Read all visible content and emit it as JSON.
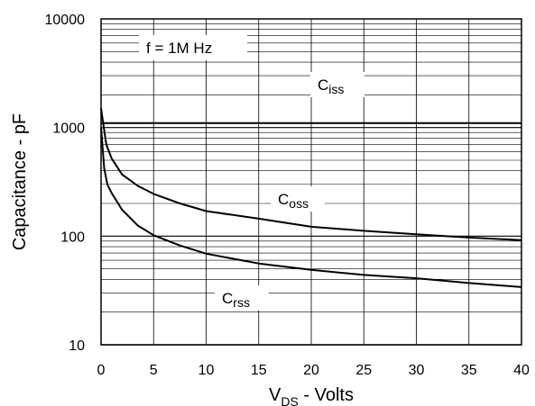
{
  "chart_data": {
    "type": "line",
    "xlabel_main": "V",
    "xlabel_sub": "DS",
    "xlabel_rest": " - Volts",
    "ylabel": "Capacitance - pF",
    "x_scale": "linear",
    "y_scale": "log",
    "xlim": [
      0,
      40
    ],
    "ylim": [
      10,
      10000
    ],
    "x_ticks": [
      "0",
      "5",
      "10",
      "15",
      "20",
      "25",
      "30",
      "35",
      "40"
    ],
    "y_ticks": [
      "10",
      "100",
      "1000",
      "10000"
    ],
    "grid": true,
    "annotation": "f = 1M Hz",
    "series": [
      {
        "name": "C",
        "name_sub": "iss",
        "x": [
          0,
          40
        ],
        "y": [
          1100,
          1100
        ]
      },
      {
        "name": "C",
        "name_sub": "oss",
        "x": [
          0,
          0.5,
          1,
          2,
          3.5,
          5,
          7.5,
          10,
          15,
          20,
          25,
          30,
          35,
          40
        ],
        "y": [
          1500,
          700,
          520,
          370,
          290,
          245,
          200,
          170,
          145,
          122,
          112,
          104,
          97,
          92
        ]
      },
      {
        "name": "C",
        "name_sub": "rss",
        "x": [
          0,
          0.3,
          0.6,
          1,
          2,
          3.5,
          5,
          7.5,
          10,
          15,
          20,
          25,
          30,
          35,
          40
        ],
        "y": [
          1000,
          420,
          300,
          250,
          175,
          125,
          102,
          82,
          69,
          56,
          49,
          44,
          41,
          37,
          34
        ]
      }
    ]
  }
}
